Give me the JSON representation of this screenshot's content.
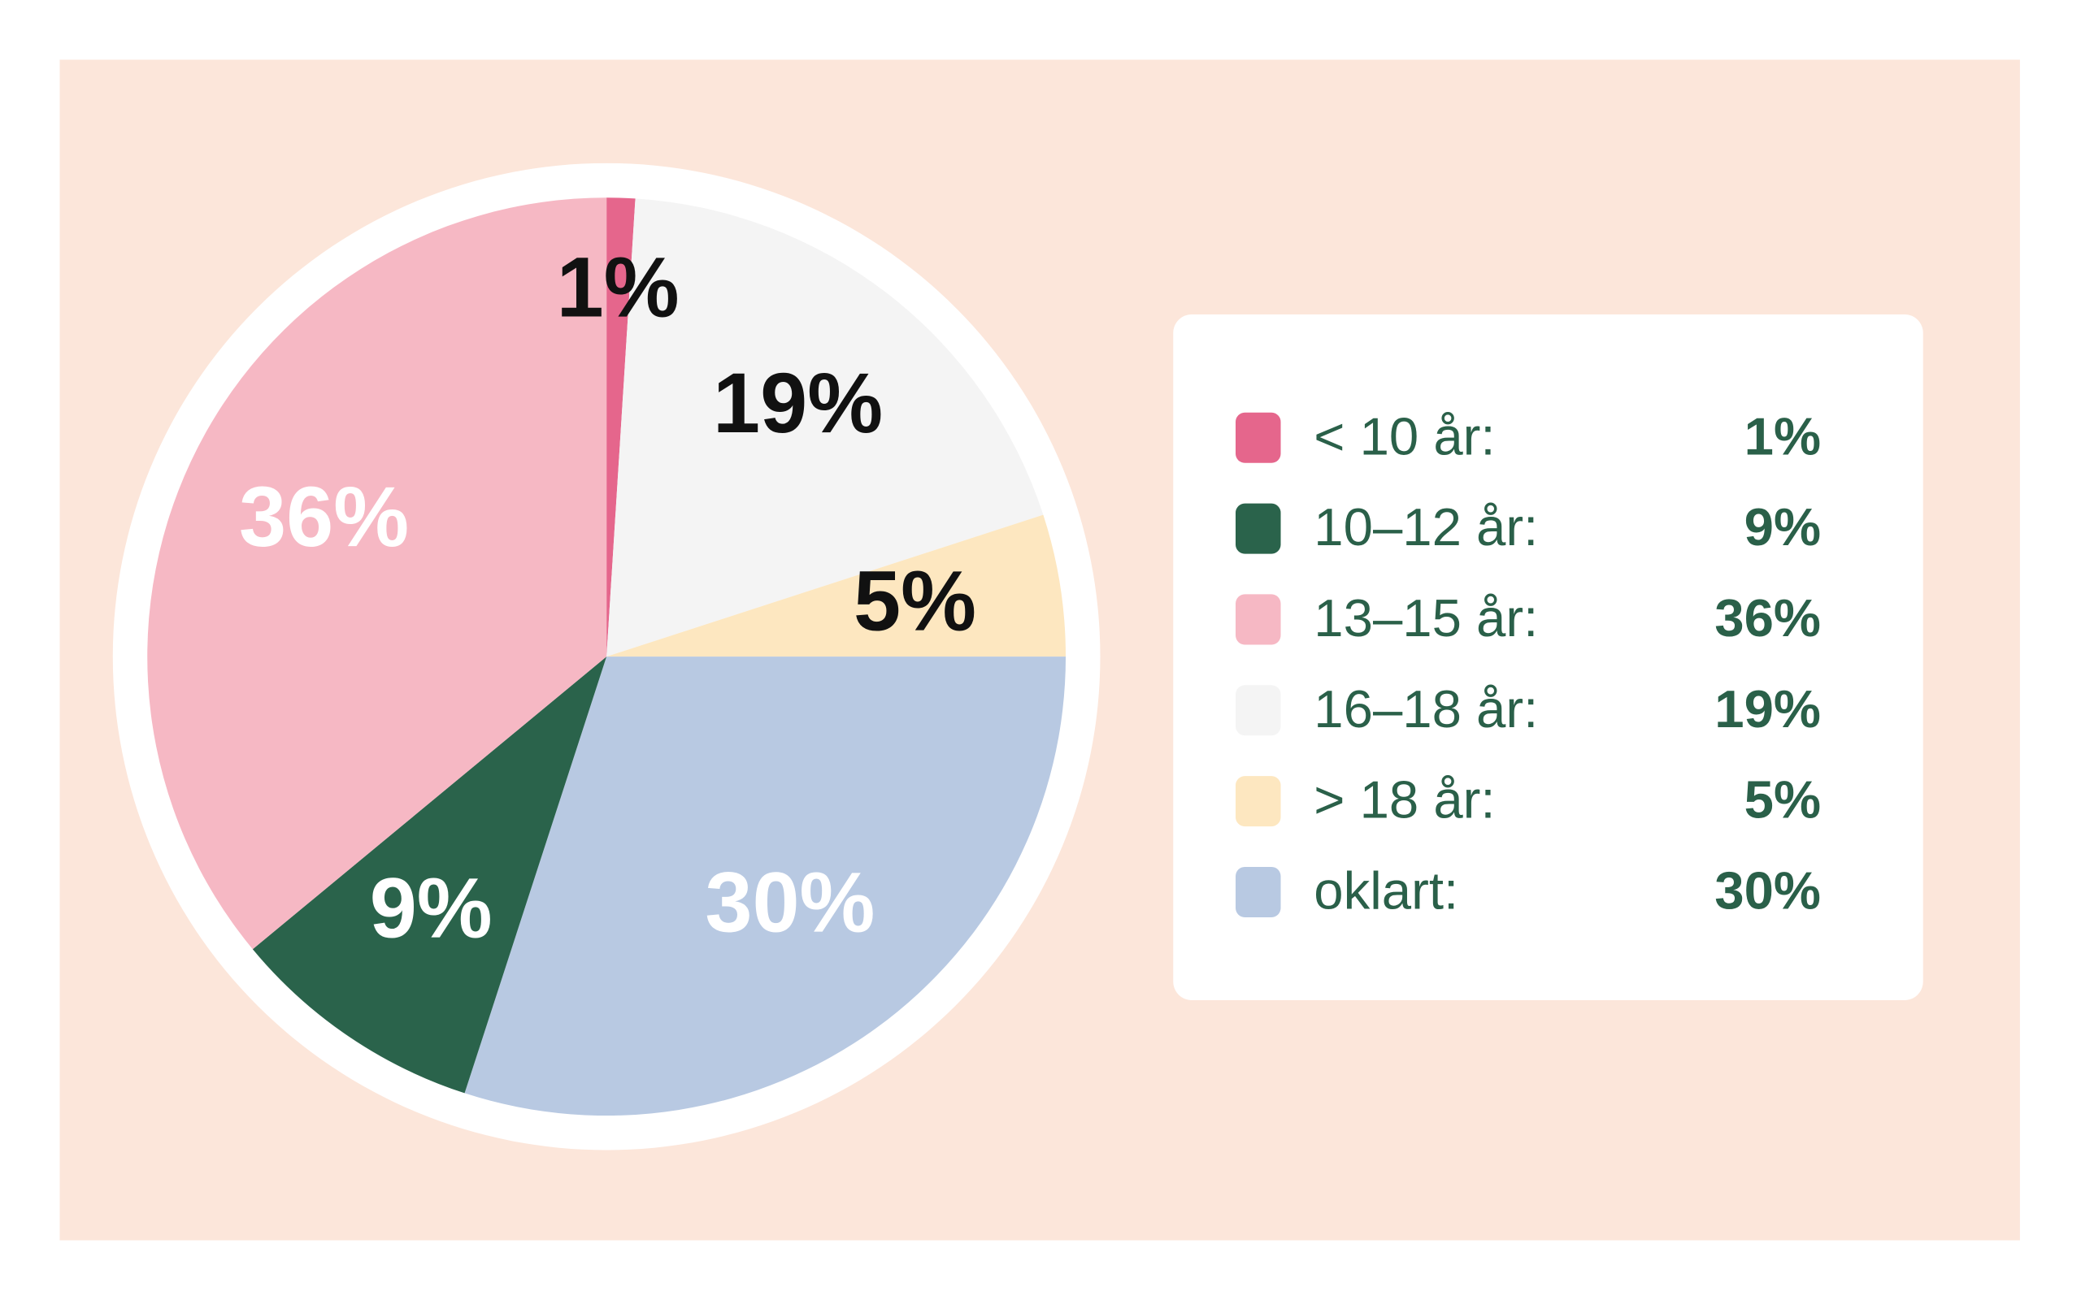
{
  "chart_data": {
    "type": "pie",
    "values": [
      1,
      19,
      5,
      30,
      9,
      36
    ],
    "value_labels": [
      "1%",
      "19%",
      "5%",
      "30%",
      "9%",
      "36%"
    ],
    "colors": [
      "#e5668c",
      "#f4f4f4",
      "#fde7c0",
      "#b8c9e2",
      "#2a634b",
      "#f6b8c4"
    ],
    "label_colors": [
      "#111111",
      "#111111",
      "#111111",
      "#ffffff",
      "#ffffff",
      "#ffffff"
    ],
    "legend": {
      "entries": [
        {
          "label": "< 10 år:",
          "value_label": "1%",
          "color": "#e5668c"
        },
        {
          "label": "10–12 år:",
          "value_label": "9%",
          "color": "#2a634b"
        },
        {
          "label": "13–15 år:",
          "value_label": "36%",
          "color": "#f6b8c4"
        },
        {
          "label": "16–18 år:",
          "value_label": "19%",
          "color": "#f4f4f4"
        },
        {
          "label": "> 18 år:",
          "value_label": "5%",
          "color": "#fde7c0"
        },
        {
          "label": "oklart:",
          "value_label": "30%",
          "color": "#b8c9e2"
        }
      ]
    }
  }
}
